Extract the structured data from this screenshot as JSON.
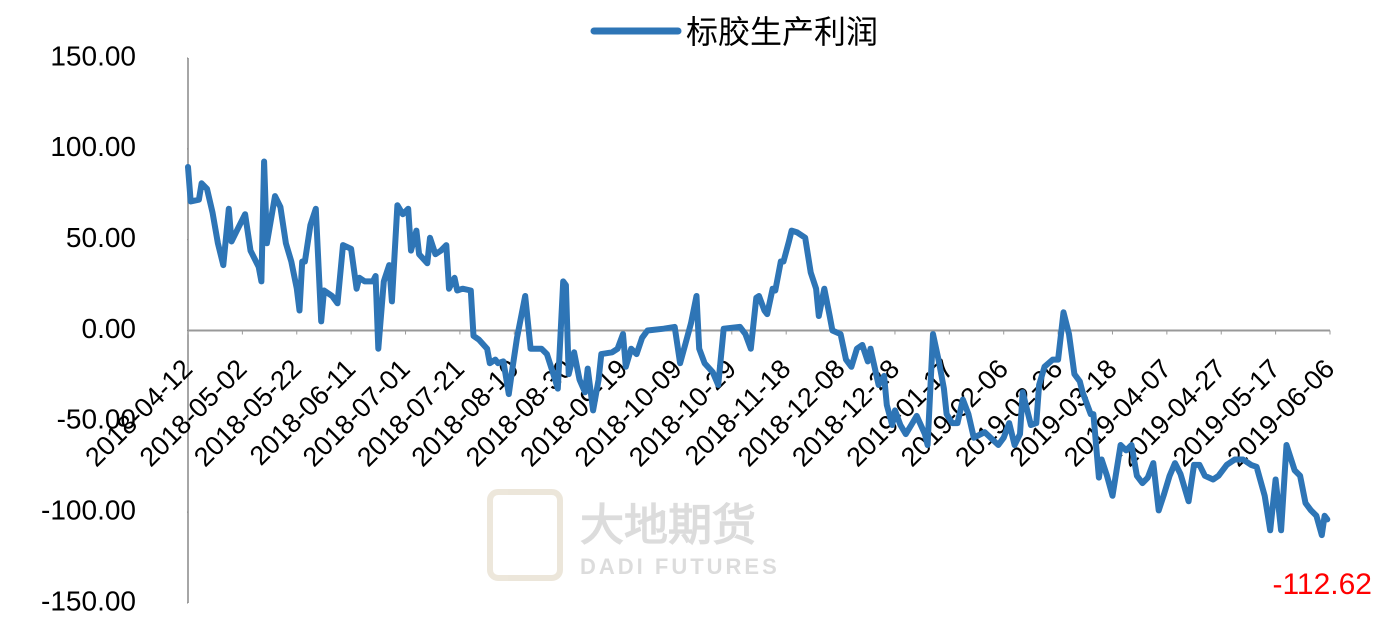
{
  "chart_data": {
    "type": "line",
    "x": [
      "2018-04-12",
      "2018-04-13",
      "2018-04-16",
      "2018-04-17",
      "2018-04-19",
      "2018-04-21",
      "2018-04-23",
      "2018-04-25",
      "2018-04-27",
      "2018-04-28",
      "2018-04-30",
      "2018-05-03",
      "2018-05-05",
      "2018-05-08",
      "2018-05-09",
      "2018-05-10",
      "2018-05-11",
      "2018-05-14",
      "2018-05-16",
      "2018-05-18",
      "2018-05-20",
      "2018-05-22",
      "2018-05-23",
      "2018-05-24",
      "2018-05-25",
      "2018-05-27",
      "2018-05-29",
      "2018-05-31",
      "2018-06-01",
      "2018-06-04",
      "2018-06-06",
      "2018-06-08",
      "2018-06-11",
      "2018-06-13",
      "2018-06-14",
      "2018-06-16",
      "2018-06-19",
      "2018-06-20",
      "2018-06-21",
      "2018-06-23",
      "2018-06-25",
      "2018-06-26",
      "2018-06-28",
      "2018-06-30",
      "2018-07-02",
      "2018-07-03",
      "2018-07-05",
      "2018-07-06",
      "2018-07-09",
      "2018-07-10",
      "2018-07-12",
      "2018-07-14",
      "2018-07-16",
      "2018-07-17",
      "2018-07-19",
      "2018-07-20",
      "2018-07-22",
      "2018-07-25",
      "2018-07-26",
      "2018-07-28",
      "2018-07-31",
      "2018-08-01",
      "2018-08-03",
      "2018-08-04",
      "2018-08-06",
      "2018-08-08",
      "2018-08-09",
      "2018-08-11",
      "2018-08-14",
      "2018-08-16",
      "2018-08-20",
      "2018-08-22",
      "2018-08-25",
      "2018-08-26",
      "2018-08-28",
      "2018-08-29",
      "2018-08-30",
      "2018-09-01",
      "2018-09-03",
      "2018-09-05",
      "2018-09-06",
      "2018-09-08",
      "2018-09-10",
      "2018-09-11",
      "2018-09-15",
      "2018-09-17",
      "2018-09-19",
      "2018-09-20",
      "2018-09-22",
      "2018-09-24",
      "2018-09-26",
      "2018-09-28",
      "2018-10-04",
      "2018-10-08",
      "2018-10-10",
      "2018-10-12",
      "2018-10-14",
      "2018-10-16",
      "2018-10-17",
      "2018-10-19",
      "2018-10-22",
      "2018-10-24",
      "2018-10-26",
      "2018-11-01",
      "2018-11-03",
      "2018-11-05",
      "2018-11-07",
      "2018-11-08",
      "2018-11-10",
      "2018-11-11",
      "2018-11-13",
      "2018-11-14",
      "2018-11-16",
      "2018-11-17",
      "2018-11-19",
      "2018-11-20",
      "2018-11-22",
      "2018-11-25",
      "2018-11-27",
      "2018-11-29",
      "2018-11-30",
      "2018-12-02",
      "2018-12-04",
      "2018-12-05",
      "2018-12-08",
      "2018-12-10",
      "2018-12-12",
      "2018-12-14",
      "2018-12-16",
      "2018-12-18",
      "2018-12-19",
      "2018-12-22",
      "2018-12-24",
      "2018-12-25",
      "2018-12-27",
      "2018-12-28",
      "2018-12-30",
      "2019-01-01",
      "2019-01-03",
      "2019-01-05",
      "2019-01-08",
      "2019-01-09",
      "2019-01-11",
      "2019-01-13",
      "2019-01-15",
      "2019-01-16",
      "2019-01-18",
      "2019-01-20",
      "2019-01-22",
      "2019-01-24",
      "2019-01-26",
      "2019-01-30",
      "2019-02-04",
      "2019-02-06",
      "2019-02-08",
      "2019-02-10",
      "2019-02-12",
      "2019-02-13",
      "2019-02-16",
      "2019-02-18",
      "2019-02-19",
      "2019-02-21",
      "2019-02-24",
      "2019-02-26",
      "2019-02-28",
      "2019-03-02",
      "2019-03-04",
      "2019-03-06",
      "2019-03-07",
      "2019-03-10",
      "2019-03-11",
      "2019-03-13",
      "2019-03-14",
      "2019-03-16",
      "2019-03-18",
      "2019-03-21",
      "2019-03-23",
      "2019-03-25",
      "2019-03-27",
      "2019-03-29",
      "2019-03-31",
      "2019-04-02",
      "2019-04-04",
      "2019-04-06",
      "2019-04-08",
      "2019-04-10",
      "2019-04-12",
      "2019-04-15",
      "2019-04-17",
      "2019-04-19",
      "2019-04-21",
      "2019-04-24",
      "2019-04-26",
      "2019-04-29",
      "2019-05-02",
      "2019-05-05",
      "2019-05-08",
      "2019-05-10",
      "2019-05-13",
      "2019-05-15",
      "2019-05-17",
      "2019-05-19",
      "2019-05-21",
      "2019-05-24",
      "2019-05-26",
      "2019-05-28",
      "2019-05-30",
      "2019-06-01",
      "2019-06-03",
      "2019-06-04",
      "2019-06-05"
    ],
    "series": [
      {
        "name": "标胶生产利润",
        "color": "#2e75b6",
        "values": [
          90,
          71,
          72,
          81,
          78,
          65,
          48,
          36,
          67,
          49,
          55,
          64,
          44,
          35,
          27,
          93,
          48,
          74,
          68,
          48,
          38,
          23,
          11,
          38,
          38,
          58,
          67,
          5,
          22,
          19,
          15,
          47,
          45,
          23,
          29,
          27,
          27,
          30,
          -10,
          27,
          36,
          16,
          69,
          64,
          67,
          44,
          55,
          42,
          37,
          51,
          42,
          44,
          47,
          23,
          29,
          22,
          23,
          22,
          -3,
          -5,
          -10,
          -18,
          -16,
          -18,
          -17,
          -35,
          -24,
          -4,
          19,
          -10,
          -10,
          -13,
          -27,
          -32,
          27,
          25,
          -24,
          -12,
          -27,
          -34,
          -21,
          -44,
          -27,
          -13,
          -12,
          -10,
          -2,
          -20,
          -10,
          -13,
          -4,
          0,
          1,
          2,
          -18,
          -7,
          4,
          19,
          -10,
          -18,
          -23,
          -30,
          1,
          2,
          -2,
          -10,
          18,
          19,
          11,
          9,
          23,
          22,
          38,
          38,
          49,
          55,
          54,
          51,
          32,
          23,
          8,
          23,
          8,
          0,
          -2,
          -16,
          -20,
          -10,
          -8,
          -17,
          -10,
          -30,
          -25,
          -41,
          -52,
          -44,
          -52,
          -57,
          -52,
          -47,
          -57,
          -63,
          -2,
          -16,
          -32,
          -46,
          -51,
          -51,
          -38,
          -46,
          -59,
          -56,
          -63,
          -59,
          -51,
          -63,
          -57,
          -34,
          -52,
          -51,
          -30,
          -20,
          -16,
          -16,
          10,
          -2,
          -24,
          -28,
          -34,
          -46,
          -46,
          -81,
          -71,
          -80,
          -91,
          -63,
          -66,
          -63,
          -80,
          -84,
          -81,
          -73,
          -99,
          -90,
          -80,
          -73,
          -79,
          -94,
          -74,
          -74,
          -80,
          -82,
          -80,
          -74,
          -71,
          -71,
          -74,
          -75,
          -91,
          -110,
          -82,
          -110,
          -63,
          -77,
          -80,
          -95,
          -99,
          -102,
          -112.62,
          -102,
          -104
        ]
      }
    ],
    "annotation": "-112.62",
    "annotation_color": "#ff0000",
    "xlim": [
      "2018-04-12",
      "2019-06-06"
    ],
    "xticks": [
      "2018-04-12",
      "2018-05-02",
      "2018-05-22",
      "2018-06-11",
      "2018-07-01",
      "2018-07-21",
      "2018-08-10",
      "2018-08-30",
      "2018-09-19",
      "2018-10-09",
      "2018-10-29",
      "2018-11-18",
      "2018-12-08",
      "2018-12-28",
      "2019-01-17",
      "2019-02-06",
      "2019-02-26",
      "2019-03-18",
      "2019-04-07",
      "2019-04-27",
      "2019-05-17",
      "2019-06-06"
    ],
    "ylim": [
      -150,
      150
    ],
    "yticks": [
      {
        "value": 150,
        "label": "150.00"
      },
      {
        "value": 100,
        "label": "100.00"
      },
      {
        "value": 50,
        "label": "50.00"
      },
      {
        "value": 0,
        "label": "0.00"
      },
      {
        "value": -50,
        "label": "-50.00"
      },
      {
        "value": -100,
        "label": "-100.00"
      },
      {
        "value": -150,
        "label": "-150.00"
      }
    ],
    "grid": false,
    "legend": "top",
    "watermark": {
      "cn": "大地期货",
      "en": "DADI FUTURES"
    }
  }
}
